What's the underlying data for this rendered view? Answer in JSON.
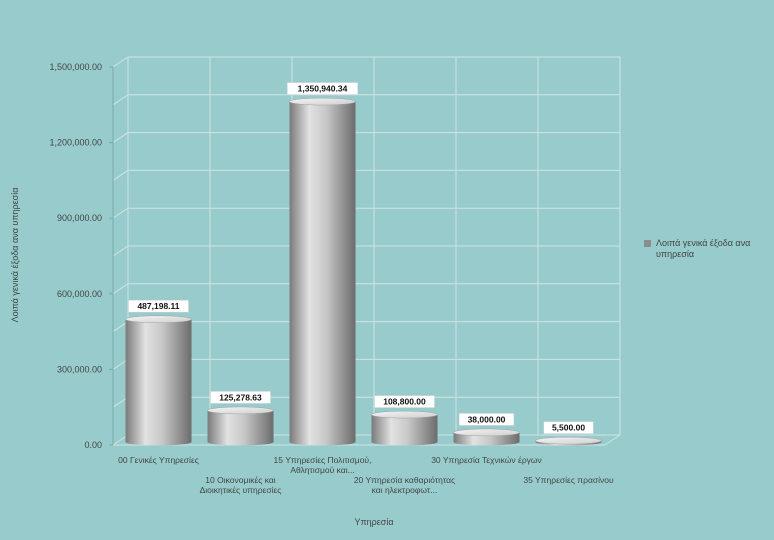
{
  "chart_data": {
    "type": "bar",
    "style": "3d-cylinder",
    "categories": [
      [
        "00 Γενικές Υπηρεσίες"
      ],
      [
        "10 Οικονομικές και",
        "Διοικητικές υπηρεσίες"
      ],
      [
        "15 Υπηρεσίες Πολιτισμού,",
        "Αθλητισμού και..."
      ],
      [
        "20 Υπηρεσία καθαριότητας",
        "και ηλεκτροφωτ..."
      ],
      [
        "30 Υπηρεσία Τεχνικών έργων"
      ],
      [
        "35 Υπηρεσίες πρασίνου"
      ]
    ],
    "series": [
      {
        "name": "Λοιπά γενικά έξοδα ανα υπηρεσία",
        "values": [
          487198.11,
          125278.63,
          1350940.34,
          108800.0,
          38000.0,
          5500.0
        ],
        "labels": [
          "487,198.11",
          "125,278.63",
          "1,350,940.34",
          "108,800.00",
          "38,000.00",
          "5,500.00"
        ],
        "color": "#9a9a9a"
      }
    ],
    "ylim": [
      0,
      1500000
    ],
    "yticks": [
      "0.00",
      "300,000.00",
      "600,000.00",
      "900,000.00",
      "1,200,000.00",
      "1,500,000.00"
    ],
    "xlabel": "Υπηρεσία",
    "ylabel": "Λοιπά γενικά έξοδα ανα υπηρεσία",
    "grid": true,
    "legend_position": "right",
    "legend": [
      "Λοιπά γενικά έξοδα ανα",
      "υπηρεσία"
    ]
  }
}
